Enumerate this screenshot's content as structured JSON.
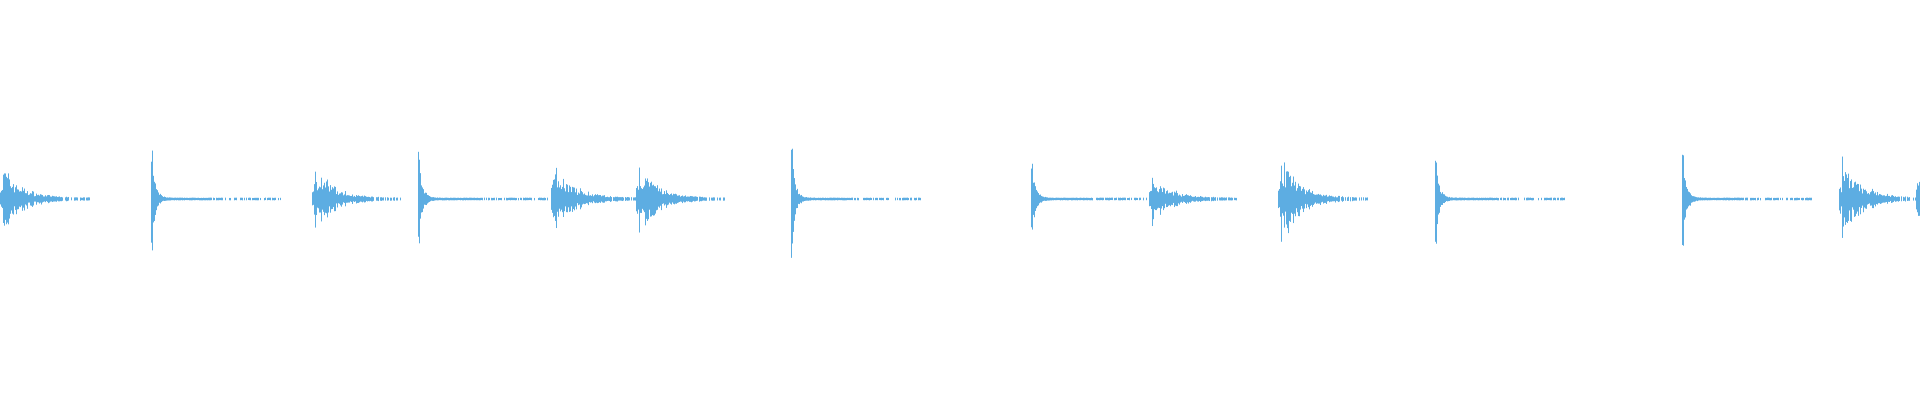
{
  "chart_data": {
    "type": "waveform",
    "color": "#5dade2",
    "background": "#ffffff",
    "amplitude_range": [
      -1,
      1
    ],
    "events": [
      {
        "kind": "rattle",
        "peak": 0.19
      },
      {
        "kind": "sharp",
        "peak": 0.24
      },
      {
        "kind": "rattle",
        "peak": 0.19
      },
      {
        "kind": "sharp",
        "peak": 0.23
      },
      {
        "kind": "rattle",
        "peak": 0.22
      },
      {
        "kind": "rattle",
        "peak": 0.2
      },
      {
        "kind": "sharp",
        "peak": 0.27
      },
      {
        "kind": "sharp",
        "peak": 0.19
      },
      {
        "kind": "rattle",
        "peak": 0.14
      },
      {
        "kind": "rattle",
        "peak": 0.26
      },
      {
        "kind": "sharp",
        "peak": 0.21
      },
      {
        "kind": "sharp",
        "peak": 0.26
      },
      {
        "kind": "rattle",
        "peak": 0.24
      },
      {
        "kind": "rattle",
        "peak": 0.23
      }
    ]
  }
}
